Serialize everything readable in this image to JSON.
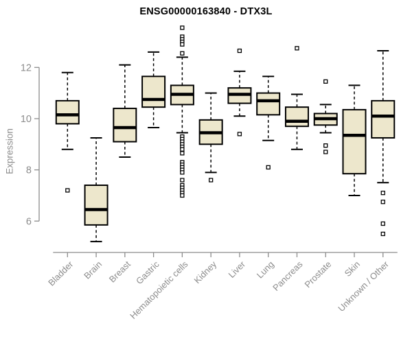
{
  "chart": {
    "title": "ENSG00000163840 - DTX3L",
    "ylabel": "Expression"
  },
  "chart_data": {
    "type": "boxplot",
    "title": "ENSG00000163840 - DTX3L",
    "ylabel": "Expression",
    "xlabel": "",
    "yticks": [
      6,
      8,
      10,
      12
    ],
    "ylim": [
      4.8,
      13.8
    ],
    "grid": false,
    "legend": "none",
    "categories": [
      "Bladder",
      "Brain",
      "Breast",
      "Gastric",
      "Hematopoietic cells",
      "Kidney",
      "Liver",
      "Lung",
      "Pancreas",
      "Prostate",
      "Skin",
      "Unknown / Other"
    ],
    "boxes": [
      {
        "category": "Bladder",
        "whisker_low": 8.8,
        "q1": 9.8,
        "median": 10.15,
        "q3": 10.7,
        "whisker_high": 11.8,
        "outliers": [
          7.2
        ]
      },
      {
        "category": "Brain",
        "whisker_low": 5.2,
        "q1": 5.85,
        "median": 6.45,
        "q3": 7.4,
        "whisker_high": 9.25,
        "outliers": []
      },
      {
        "category": "Breast",
        "whisker_low": 8.5,
        "q1": 9.1,
        "median": 9.65,
        "q3": 10.4,
        "whisker_high": 12.1,
        "outliers": []
      },
      {
        "category": "Gastric",
        "whisker_low": 9.65,
        "q1": 10.45,
        "median": 10.75,
        "q3": 11.65,
        "whisker_high": 12.6,
        "outliers": []
      },
      {
        "category": "Hematopoietic cells",
        "whisker_low": 9.45,
        "q1": 10.55,
        "median": 10.95,
        "q3": 11.3,
        "whisker_high": 12.4,
        "outliers": [
          13.55,
          13.2,
          13.1,
          13.0,
          12.9,
          12.55,
          9.3,
          9.2,
          9.1,
          9.0,
          8.9,
          8.8,
          8.65,
          8.3,
          8.2,
          8.1,
          8.0,
          7.9,
          7.6,
          7.4,
          7.3,
          7.2,
          7.1,
          7.0
        ]
      },
      {
        "category": "Kidney",
        "whisker_low": 7.9,
        "q1": 9.0,
        "median": 9.45,
        "q3": 9.95,
        "whisker_high": 11.0,
        "outliers": [
          7.6
        ]
      },
      {
        "category": "Liver",
        "whisker_low": 10.1,
        "q1": 10.6,
        "median": 10.95,
        "q3": 11.2,
        "whisker_high": 11.85,
        "outliers": [
          12.65,
          9.4
        ]
      },
      {
        "category": "Lung",
        "whisker_low": 9.15,
        "q1": 10.15,
        "median": 10.7,
        "q3": 11.0,
        "whisker_high": 11.65,
        "outliers": [
          8.1
        ]
      },
      {
        "category": "Pancreas",
        "whisker_low": 8.8,
        "q1": 9.7,
        "median": 9.9,
        "q3": 10.45,
        "whisker_high": 10.95,
        "outliers": [
          12.75
        ]
      },
      {
        "category": "Prostate",
        "whisker_low": 9.45,
        "q1": 9.75,
        "median": 10.0,
        "q3": 10.2,
        "whisker_high": 10.55,
        "outliers": [
          11.45,
          8.95,
          8.7
        ]
      },
      {
        "category": "Skin",
        "whisker_low": 7.0,
        "q1": 7.85,
        "median": 9.35,
        "q3": 10.35,
        "whisker_high": 11.3,
        "outliers": []
      },
      {
        "category": "Unknown / Other",
        "whisker_low": 7.5,
        "q1": 9.25,
        "median": 10.1,
        "q3": 10.7,
        "whisker_high": 12.65,
        "outliers": [
          7.1,
          6.75,
          5.9,
          5.5
        ]
      }
    ],
    "colors": {
      "box_fill": "#EDE7CC",
      "box_stroke": "#000000",
      "median": "#000000",
      "whisker": "#000000",
      "outlier_fill": "#FFFFFF",
      "axis": "#8C8C8C",
      "tick_label": "#8C8C8C",
      "title": "#000000",
      "background": "#FFFFFF"
    }
  }
}
